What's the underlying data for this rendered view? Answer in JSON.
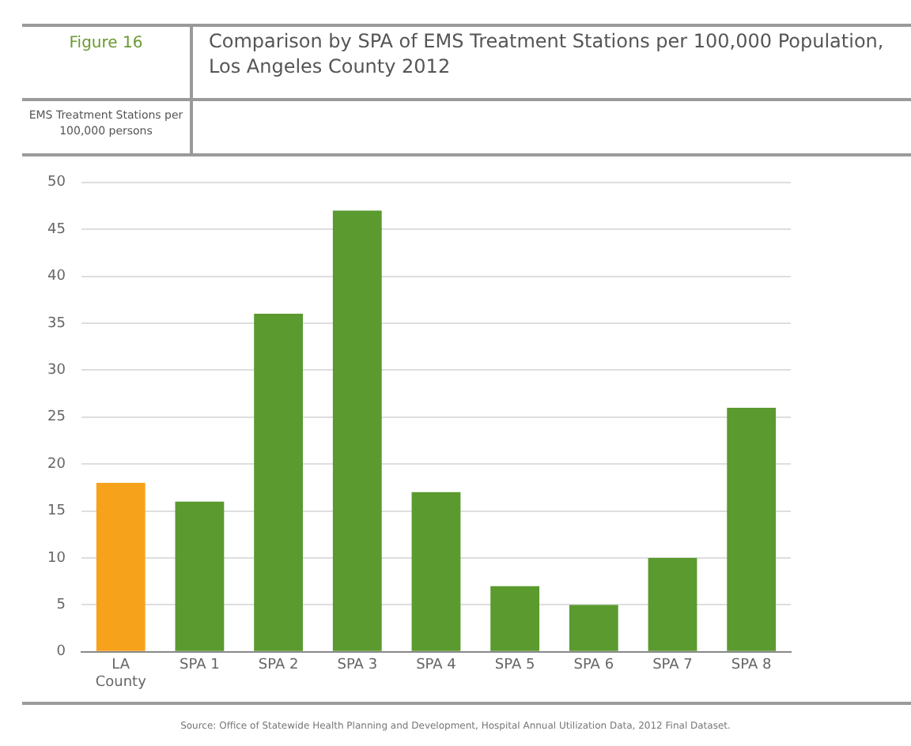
{
  "chart_data": {
    "type": "bar",
    "title": "Comparison by SPA of EMS Treatment Stations per 100,000 Population, Los Angeles County 2012",
    "subtitle": "Figure 16",
    "ylabel": "EMS Treatment Stations per 100,000 persons",
    "categories": [
      [
        "LA",
        "County"
      ],
      "SPA 1",
      "SPA 2",
      "SPA 3",
      "SPA 4",
      "SPA 5",
      "SPA 6",
      "SPA 7",
      "SPA 8"
    ],
    "values": [
      18,
      16,
      36,
      47,
      17,
      7,
      5,
      10,
      26
    ],
    "colors": [
      "#f7a21b",
      "#5a9a2e",
      "#5a9a2e",
      "#5a9a2e",
      "#5a9a2e",
      "#5a9a2e",
      "#5a9a2e",
      "#5a9a2e",
      "#5a9a2e"
    ],
    "ylim": [
      0,
      50
    ],
    "yticks": [
      0,
      5,
      10,
      15,
      20,
      25,
      30,
      35,
      40,
      45,
      50
    ],
    "grid": "y",
    "legend": false,
    "annotations": [
      "Source: Office of Statewide Health Planning and Development, Hospital Annual Utilization Data, 2012 Final Dataset."
    ]
  }
}
